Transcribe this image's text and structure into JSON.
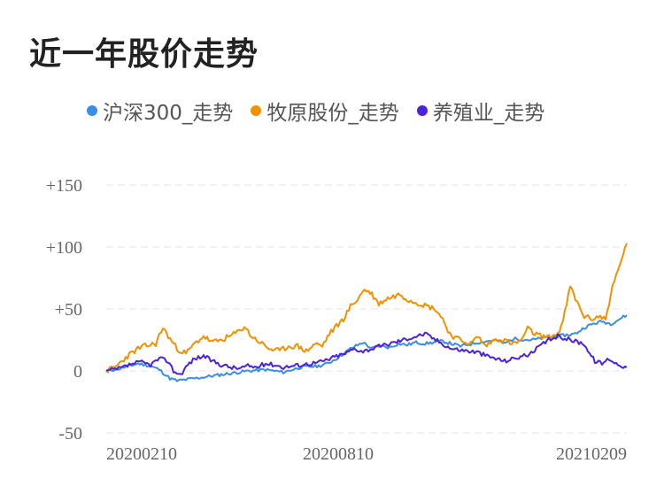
{
  "title": "近一年股价走势",
  "legend": [
    {
      "label": "沪深300_走势",
      "color": "#3a8ee6"
    },
    {
      "label": "牧原股份_走势",
      "color": "#f29100"
    },
    {
      "label": "养殖业_走势",
      "color": "#4b22e0"
    }
  ],
  "chart_data": {
    "type": "line",
    "title": "近一年股价走势",
    "xlabel": "",
    "ylabel": "",
    "ylim": [
      -50,
      150
    ],
    "yticks": [
      "+150",
      "+100",
      "+50",
      "0",
      "-50"
    ],
    "ytick_values": [
      150,
      100,
      50,
      0,
      -50
    ],
    "x_tick_labels": [
      "20200210",
      "20200810",
      "20210209"
    ],
    "x_tick_indices": [
      6,
      131,
      256
    ],
    "grid": true,
    "legend_position": "top",
    "x_count": 295,
    "series": [
      {
        "name": "沪深300_走势",
        "color": "#3a8ee6",
        "points": [
          [
            0,
            0
          ],
          [
            8,
            2
          ],
          [
            18,
            6
          ],
          [
            25,
            4
          ],
          [
            30,
            1
          ],
          [
            36,
            -6
          ],
          [
            40,
            -8
          ],
          [
            50,
            -6
          ],
          [
            60,
            -4
          ],
          [
            70,
            -2
          ],
          [
            80,
            0
          ],
          [
            90,
            1
          ],
          [
            100,
            -1
          ],
          [
            110,
            3
          ],
          [
            120,
            4
          ],
          [
            125,
            6
          ],
          [
            130,
            10
          ],
          [
            138,
            18
          ],
          [
            145,
            23
          ],
          [
            150,
            18
          ],
          [
            155,
            20
          ],
          [
            160,
            19
          ],
          [
            165,
            22
          ],
          [
            170,
            21
          ],
          [
            175,
            23
          ],
          [
            180,
            22
          ],
          [
            190,
            24
          ],
          [
            200,
            20
          ],
          [
            210,
            23
          ],
          [
            220,
            25
          ],
          [
            225,
            22
          ],
          [
            230,
            26
          ],
          [
            240,
            25
          ],
          [
            250,
            27
          ],
          [
            260,
            29
          ],
          [
            265,
            30
          ],
          [
            270,
            35
          ],
          [
            275,
            38
          ],
          [
            280,
            40
          ],
          [
            285,
            38
          ],
          [
            290,
            42
          ],
          [
            294,
            45
          ]
        ]
      },
      {
        "name": "牧原股份_走势",
        "color": "#f29100",
        "points": [
          [
            0,
            0
          ],
          [
            5,
            3
          ],
          [
            12,
            12
          ],
          [
            18,
            18
          ],
          [
            22,
            20
          ],
          [
            28,
            22
          ],
          [
            32,
            35
          ],
          [
            35,
            28
          ],
          [
            40,
            18
          ],
          [
            45,
            14
          ],
          [
            50,
            22
          ],
          [
            55,
            28
          ],
          [
            60,
            23
          ],
          [
            65,
            25
          ],
          [
            70,
            28
          ],
          [
            75,
            32
          ],
          [
            78,
            36
          ],
          [
            82,
            28
          ],
          [
            88,
            22
          ],
          [
            92,
            18
          ],
          [
            98,
            16
          ],
          [
            103,
            20
          ],
          [
            108,
            20
          ],
          [
            113,
            16
          ],
          [
            118,
            22
          ],
          [
            122,
            20
          ],
          [
            126,
            30
          ],
          [
            130,
            36
          ],
          [
            134,
            42
          ],
          [
            138,
            52
          ],
          [
            142,
            58
          ],
          [
            146,
            66
          ],
          [
            150,
            62
          ],
          [
            154,
            54
          ],
          [
            158,
            58
          ],
          [
            162,
            60
          ],
          [
            166,
            62
          ],
          [
            170,
            58
          ],
          [
            174,
            56
          ],
          [
            178,
            54
          ],
          [
            182,
            52
          ],
          [
            186,
            50
          ],
          [
            190,
            42
          ],
          [
            194,
            30
          ],
          [
            198,
            26
          ],
          [
            202,
            24
          ],
          [
            206,
            22
          ],
          [
            210,
            28
          ],
          [
            214,
            20
          ],
          [
            218,
            24
          ],
          [
            222,
            26
          ],
          [
            226,
            24
          ],
          [
            230,
            22
          ],
          [
            234,
            24
          ],
          [
            238,
            34
          ],
          [
            242,
            30
          ],
          [
            246,
            28
          ],
          [
            250,
            27
          ],
          [
            255,
            30
          ],
          [
            258,
            40
          ],
          [
            262,
            68
          ],
          [
            266,
            55
          ],
          [
            270,
            44
          ],
          [
            274,
            42
          ],
          [
            278,
            44
          ],
          [
            282,
            42
          ],
          [
            286,
            68
          ],
          [
            290,
            85
          ],
          [
            292,
            95
          ],
          [
            294,
            103
          ]
        ]
      },
      {
        "name": "养殖业_走势",
        "color": "#4b22e0",
        "points": [
          [
            0,
            0
          ],
          [
            5,
            1
          ],
          [
            10,
            3
          ],
          [
            15,
            6
          ],
          [
            20,
            7
          ],
          [
            25,
            5
          ],
          [
            30,
            10
          ],
          [
            35,
            8
          ],
          [
            38,
            0
          ],
          [
            42,
            -3
          ],
          [
            46,
            5
          ],
          [
            50,
            10
          ],
          [
            55,
            12
          ],
          [
            60,
            8
          ],
          [
            65,
            5
          ],
          [
            70,
            3
          ],
          [
            75,
            2
          ],
          [
            80,
            4
          ],
          [
            85,
            3
          ],
          [
            90,
            6
          ],
          [
            95,
            5
          ],
          [
            100,
            3
          ],
          [
            105,
            4
          ],
          [
            110,
            5
          ],
          [
            115,
            6
          ],
          [
            120,
            7
          ],
          [
            125,
            9
          ],
          [
            130,
            12
          ],
          [
            135,
            14
          ],
          [
            140,
            18
          ],
          [
            145,
            16
          ],
          [
            150,
            18
          ],
          [
            155,
            20
          ],
          [
            160,
            22
          ],
          [
            165,
            24
          ],
          [
            170,
            26
          ],
          [
            175,
            28
          ],
          [
            180,
            30
          ],
          [
            185,
            26
          ],
          [
            190,
            22
          ],
          [
            195,
            18
          ],
          [
            200,
            17
          ],
          [
            205,
            16
          ],
          [
            210,
            15
          ],
          [
            215,
            12
          ],
          [
            220,
            10
          ],
          [
            225,
            8
          ],
          [
            230,
            10
          ],
          [
            235,
            12
          ],
          [
            240,
            14
          ],
          [
            245,
            20
          ],
          [
            250,
            25
          ],
          [
            255,
            28
          ],
          [
            260,
            26
          ],
          [
            265,
            24
          ],
          [
            270,
            22
          ],
          [
            273,
            14
          ],
          [
            276,
            8
          ],
          [
            280,
            6
          ],
          [
            284,
            10
          ],
          [
            288,
            6
          ],
          [
            292,
            4
          ],
          [
            294,
            3
          ]
        ]
      }
    ]
  }
}
